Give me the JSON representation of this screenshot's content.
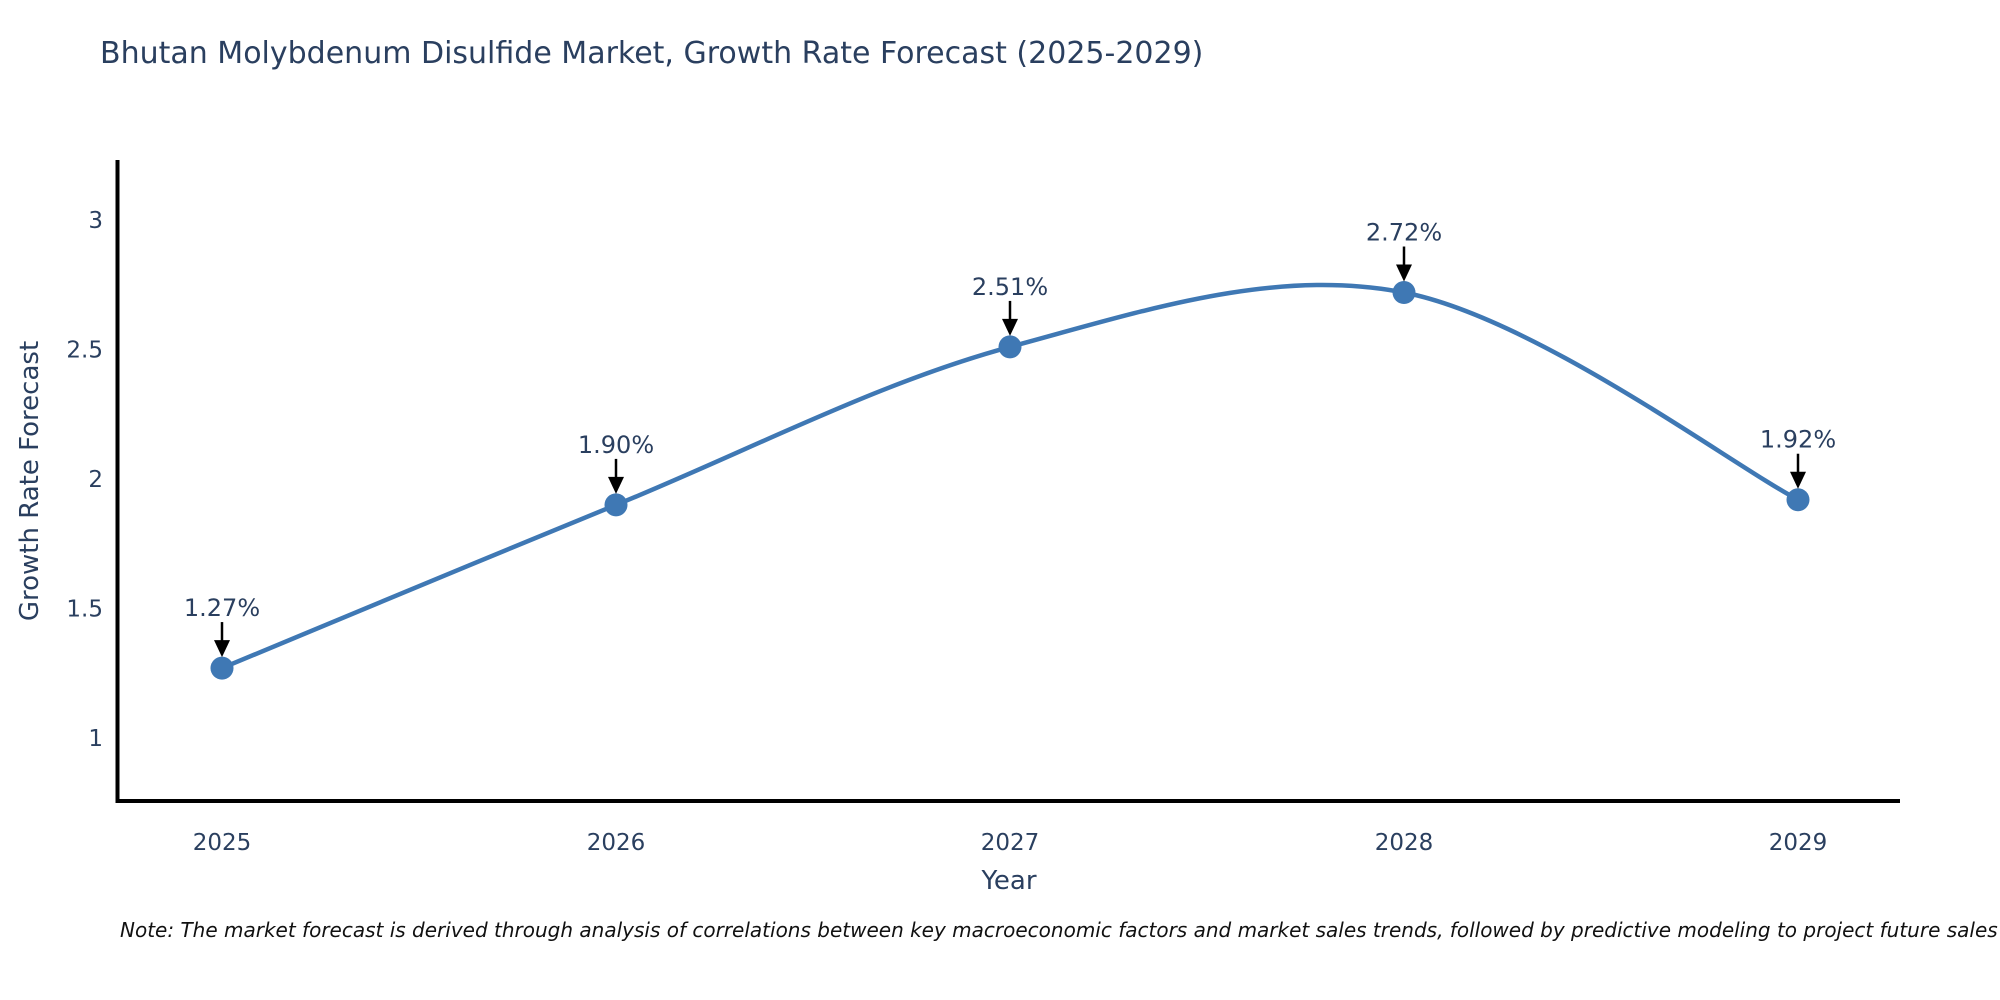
{
  "title": "Bhutan Molybdenum Disulfide Market, Growth Rate Forecast (2025-2029)",
  "note": "Note: The market forecast is derived through analysis of correlations between key macroeconomic factors and market sales trends, followed by predictive modeling to project future sales",
  "chart_data": {
    "type": "line",
    "line_shape": "spline",
    "x": [
      2025,
      2026,
      2027,
      2028,
      2029
    ],
    "values": [
      1.27,
      1.9,
      2.51,
      2.72,
      1.92
    ],
    "point_labels": [
      "1.27%",
      "1.90%",
      "2.51%",
      "2.72%",
      "1.92%"
    ],
    "title": "Bhutan Molybdenum Disulfide Market, Growth Rate Forecast (2025-2029)",
    "xlabel": "Year",
    "ylabel": "Growth Rate Forecast",
    "x_tick_labels": [
      "2025",
      "2026",
      "2027",
      "2028",
      "2029"
    ],
    "y_ticks": [
      1,
      1.5,
      2,
      2.5,
      3
    ],
    "y_tick_labels": [
      "1",
      "1.5",
      "2",
      "2.5",
      "3"
    ],
    "ylim": [
      0.75,
      3.25
    ],
    "xlim": [
      2024.74,
      2029.26
    ],
    "grid": false,
    "legend_position": "none",
    "line_color": "#3f78b4",
    "marker_color": "#3f78b4",
    "axis_line_color": "#000000",
    "annotation_arrow_color": "#000000",
    "text_color": "#2a3f5f"
  }
}
